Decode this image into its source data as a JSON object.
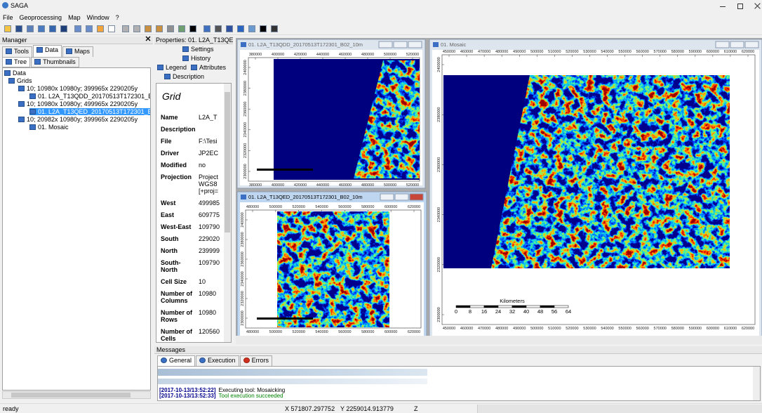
{
  "app": {
    "title": "SAGA",
    "menu": [
      "File",
      "Geoprocessing",
      "Map",
      "Window",
      "?"
    ]
  },
  "manager": {
    "title": "Manager",
    "tabs": [
      "Tools",
      "Data",
      "Maps"
    ],
    "views": [
      "Tree",
      "Thumbnails"
    ],
    "tree": [
      "Data",
      "Grids",
      "10; 10980x 10980y; 399965x 2290205y",
      "01. L2A_T13QDD_20170513T172301_B02_",
      "10; 10980x 10980y; 499965x 2290205y",
      "01. L2A_T13QED_20170513T172301_B02_",
      "10; 20982x 10980y; 399965x 2290205y",
      "01. Mosaic"
    ]
  },
  "properties": {
    "title": "Properties: 01. L2A_T13QED..",
    "buttons": [
      "Settings",
      "History",
      "Legend",
      "Attributes",
      "Description"
    ],
    "heading": "Grid",
    "rows": [
      [
        "Name",
        "L2A_T"
      ],
      [
        "Description",
        ""
      ],
      [
        "File",
        "F:\\Tesi"
      ],
      [
        "Driver",
        "JP2EC"
      ],
      [
        "Modified",
        "no"
      ],
      [
        "Projection",
        [
          "Project",
          "WGS8",
          "[+proj="
        ]
      ],
      [
        "West",
        "499985"
      ],
      [
        "East",
        "609775"
      ],
      [
        "West-East",
        "109790"
      ],
      [
        "South",
        "229020"
      ],
      [
        "North",
        "239999"
      ],
      [
        "South-North",
        "109790"
      ],
      [
        "Cell Size",
        "10"
      ],
      [
        "Number of Columns",
        "10980"
      ],
      [
        "Number of Rows",
        "10980"
      ],
      [
        "Number of Cells",
        "120560"
      ]
    ]
  },
  "windows": [
    {
      "title": "01. L2A_T13QDD_20170513T172301_B02_10m",
      "xticks": [
        "380000",
        "400000",
        "420000",
        "440000",
        "460000",
        "480000",
        "500000",
        "520000"
      ],
      "yticks": [
        "2400000",
        "2380000",
        "2360000",
        "2340000",
        "2320000",
        "2300000"
      ]
    },
    {
      "title": "01. L2A_T13QED_20170513T172301_B02_10m",
      "xticks": [
        "480000",
        "500000",
        "520000",
        "540000",
        "560000",
        "580000",
        "600000",
        "620000"
      ],
      "yticks": [
        "2400000",
        "2380000",
        "2360000",
        "2340000",
        "2320000",
        "2300000"
      ]
    },
    {
      "title": "01. Mosaic",
      "xticks": [
        "450000",
        "460000",
        "470000",
        "480000",
        "490000",
        "500000",
        "510000",
        "520000",
        "530000",
        "540000",
        "550000",
        "560000",
        "570000",
        "580000",
        "590000",
        "600000",
        "610000",
        "620000"
      ],
      "yticks": [
        "2400000",
        "2380000",
        "2360000",
        "2340000",
        "2320000",
        "2300000"
      ]
    }
  ],
  "mosaic_scale": {
    "title": "Kilometers",
    "labels": [
      "0",
      "8",
      "16",
      "24",
      "32",
      "40",
      "48",
      "56",
      "64"
    ]
  },
  "messages": {
    "title": "Messages",
    "tabs": [
      "General",
      "Execution",
      "Errors"
    ],
    "log": [
      [
        "[2017-10-13/13:52:22]",
        "Executing tool: Mosaicking"
      ],
      [
        "[2017-10-13/13:52:33]",
        "Tool execution succeeded"
      ]
    ]
  },
  "status": {
    "text": "ready",
    "x": "X 571807.297752",
    "y": "Y 2259014.913779",
    "z": "Z"
  }
}
